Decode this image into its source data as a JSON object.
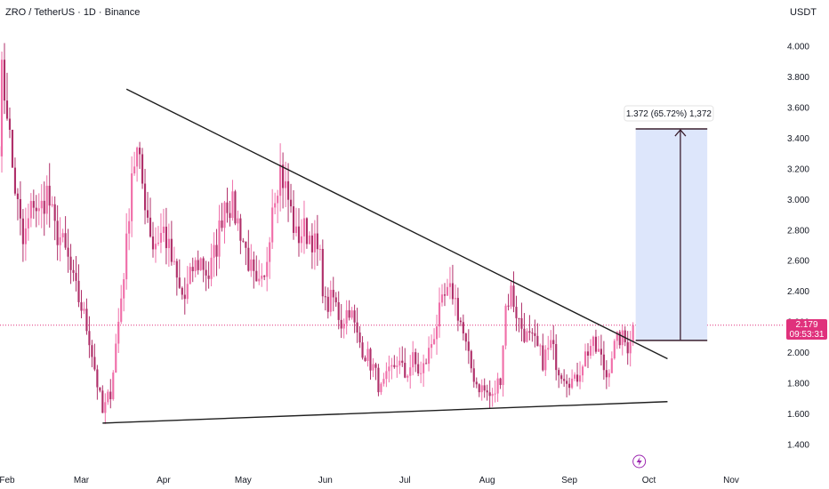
{
  "header": {
    "title": "ZRO / TetherUS · 1D · Binance",
    "currency": "USDT"
  },
  "price_tag": {
    "price": "2.179",
    "countdown": "09:53:31"
  },
  "measure_label": "1.372 (65.72%) 1,372",
  "colors": {
    "candle": "#f06fa9",
    "candle_dark": "#b0306a",
    "last_price": "#e0317c",
    "trendline": "#1e1e1e",
    "measure_fill": "#dde6fb",
    "measure_line": "#3a1f2e"
  },
  "event_icon": "lightning-icon",
  "chart_data": {
    "type": "candlestick",
    "title": "ZRO / TetherUS · 1D · Binance",
    "y_unit": "USDT",
    "ylim": [
      1.3,
      4.1
    ],
    "y_ticks": [
      "4.000",
      "3.800",
      "3.600",
      "3.400",
      "3.200",
      "3.000",
      "2.800",
      "2.600",
      "2.400",
      "2.200",
      "2.000",
      "1.800",
      "1.600",
      "1.400"
    ],
    "x_ticks": [
      "Feb",
      "Mar",
      "Apr",
      "May",
      "Jun",
      "Jul",
      "Aug",
      "Sep",
      "Oct",
      "Nov"
    ],
    "x_tick_dates": [
      "2025-02-01",
      "2025-03-01",
      "2025-04-01",
      "2025-05-01",
      "2025-06-01",
      "2025-07-01",
      "2025-08-01",
      "2025-09-01",
      "2025-10-01",
      "2025-11-01"
    ],
    "last_price": 2.179,
    "price_path": [
      [
        "2025-01-29",
        3.4
      ],
      [
        "2025-01-30",
        3.8
      ],
      [
        "2025-02-01",
        3.6
      ],
      [
        "2025-02-03",
        3.2
      ],
      [
        "2025-02-05",
        2.95
      ],
      [
        "2025-02-07",
        2.7
      ],
      [
        "2025-02-09",
        2.85
      ],
      [
        "2025-02-11",
        3.0
      ],
      [
        "2025-02-13",
        2.9
      ],
      [
        "2025-02-16",
        3.05
      ],
      [
        "2025-02-19",
        2.8
      ],
      [
        "2025-02-21",
        2.75
      ],
      [
        "2025-02-24",
        2.6
      ],
      [
        "2025-02-26",
        2.45
      ],
      [
        "2025-03-01",
        2.3
      ],
      [
        "2025-03-04",
        2.1
      ],
      [
        "2025-03-06",
        1.9
      ],
      [
        "2025-03-09",
        1.6
      ],
      [
        "2025-03-12",
        1.75
      ],
      [
        "2025-03-15",
        2.2
      ],
      [
        "2025-03-18",
        2.7
      ],
      [
        "2025-03-20",
        3.2
      ],
      [
        "2025-03-22",
        3.3
      ],
      [
        "2025-03-25",
        3.0
      ],
      [
        "2025-03-28",
        2.7
      ],
      [
        "2025-04-01",
        2.8
      ],
      [
        "2025-04-04",
        2.6
      ],
      [
        "2025-04-07",
        2.4
      ],
      [
        "2025-04-09",
        2.35
      ],
      [
        "2025-04-12",
        2.55
      ],
      [
        "2025-04-15",
        2.6
      ],
      [
        "2025-04-18",
        2.5
      ],
      [
        "2025-04-21",
        2.7
      ],
      [
        "2025-04-24",
        3.0
      ],
      [
        "2025-04-27",
        2.95
      ],
      [
        "2025-04-30",
        2.8
      ],
      [
        "2025-05-03",
        2.6
      ],
      [
        "2025-05-06",
        2.4
      ],
      [
        "2025-05-09",
        2.45
      ],
      [
        "2025-05-12",
        3.0
      ],
      [
        "2025-05-15",
        3.2
      ],
      [
        "2025-05-18",
        3.0
      ],
      [
        "2025-05-21",
        2.75
      ],
      [
        "2025-05-24",
        2.8
      ],
      [
        "2025-05-27",
        2.75
      ],
      [
        "2025-05-30",
        2.6
      ],
      [
        "2025-06-01",
        2.3
      ],
      [
        "2025-06-04",
        2.35
      ],
      [
        "2025-06-07",
        2.2
      ],
      [
        "2025-06-10",
        2.3
      ],
      [
        "2025-06-13",
        2.1
      ],
      [
        "2025-06-16",
        2.0
      ],
      [
        "2025-06-19",
        1.9
      ],
      [
        "2025-06-22",
        1.75
      ],
      [
        "2025-06-25",
        1.85
      ],
      [
        "2025-06-28",
        1.95
      ],
      [
        "2025-07-01",
        1.85
      ],
      [
        "2025-07-04",
        1.95
      ],
      [
        "2025-07-07",
        1.85
      ],
      [
        "2025-07-10",
        2.0
      ],
      [
        "2025-07-13",
        2.2
      ],
      [
        "2025-07-16",
        2.35
      ],
      [
        "2025-07-19",
        2.4
      ],
      [
        "2025-07-22",
        2.2
      ],
      [
        "2025-07-25",
        1.95
      ],
      [
        "2025-07-28",
        1.8
      ],
      [
        "2025-07-31",
        1.75
      ],
      [
        "2025-08-03",
        1.7
      ],
      [
        "2025-08-06",
        1.85
      ],
      [
        "2025-08-08",
        2.3
      ],
      [
        "2025-08-10",
        2.4
      ],
      [
        "2025-08-13",
        2.2
      ],
      [
        "2025-08-16",
        2.1
      ],
      [
        "2025-08-19",
        2.05
      ],
      [
        "2025-08-22",
        1.95
      ],
      [
        "2025-08-25",
        2.05
      ],
      [
        "2025-08-28",
        1.9
      ],
      [
        "2025-08-31",
        1.85
      ],
      [
        "2025-09-03",
        1.8
      ],
      [
        "2025-09-06",
        1.95
      ],
      [
        "2025-09-09",
        2.05
      ],
      [
        "2025-09-12",
        2.0
      ],
      [
        "2025-09-15",
        1.85
      ],
      [
        "2025-09-17",
        2.0
      ],
      [
        "2025-09-20",
        2.1
      ],
      [
        "2025-09-23",
        2.05
      ],
      [
        "2025-09-25",
        2.18
      ]
    ],
    "annotations": {
      "upper_trendline": [
        [
          "2025-03-18",
          3.72
        ],
        [
          "2025-10-08",
          1.96
        ]
      ],
      "lower_trendline": [
        [
          "2025-03-09",
          1.54
        ],
        [
          "2025-10-08",
          1.68
        ]
      ],
      "measure": {
        "start": [
          "2025-09-26",
          2.08
        ],
        "end": [
          "2025-10-23",
          3.46
        ],
        "label": "1.372 (65.72%) 1,372"
      },
      "event_date": "2025-09-26"
    }
  }
}
